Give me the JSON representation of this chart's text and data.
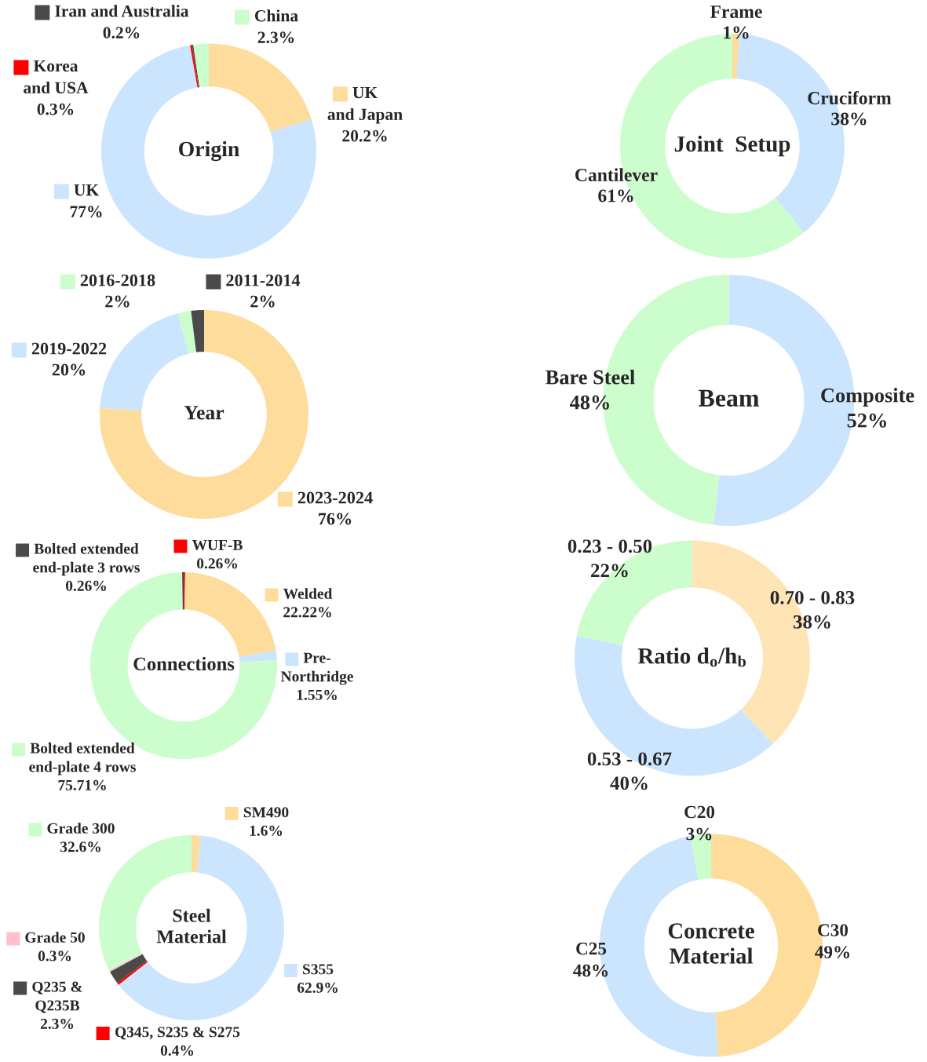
{
  "chart_data": [
    {
      "type": "donut",
      "title": "Origin",
      "categories": [
        "UK\nand Japan",
        "UK",
        "Korea\nand USA",
        "Iran and Australia",
        "China"
      ],
      "values": [
        20.2,
        77,
        0.3,
        0.2,
        2.3
      ],
      "value_labels": [
        "20.2%",
        "77%",
        "0.3%",
        "0.2%",
        "2.3%"
      ],
      "colors": [
        "#fedc9c",
        "#cce5fe",
        "#ff0000",
        "#4a4a4a",
        "#ccfdcc"
      ],
      "legend": "left"
    },
    {
      "type": "donut",
      "title": "Joint  Setup",
      "categories": [
        "Frame",
        "Cruciform",
        "Cantilever"
      ],
      "values": [
        1,
        38,
        61
      ],
      "value_labels": [
        "1%",
        "38%",
        "61%"
      ],
      "colors": [
        "#fedc9c",
        "#cce5fe",
        "#ccfdcc"
      ]
    },
    {
      "type": "donut",
      "title": "Year",
      "categories": [
        "2023-2024",
        "2019-2022",
        "2016-2018",
        "2011-2014"
      ],
      "values": [
        76,
        20,
        2,
        2
      ],
      "value_labels": [
        "76%",
        "20%",
        "2%",
        "2%"
      ],
      "colors": [
        "#fedc9c",
        "#cce5fe",
        "#ccfdcc",
        "#4a4a4a"
      ],
      "legend": "left"
    },
    {
      "type": "donut",
      "title": "Beam",
      "categories": [
        "Composite",
        "Bare Steel"
      ],
      "values": [
        52,
        48
      ],
      "value_labels": [
        "52%",
        "48%"
      ],
      "colors": [
        "#cce5fe",
        "#ccfdcc"
      ]
    },
    {
      "type": "donut",
      "title": "Connections",
      "categories": [
        "WUF-B",
        "Welded",
        "Pre-\nNorthridge",
        "Bolted extended\nend-plate 4 rows",
        "Bolted extended\nend-plate 3 rows"
      ],
      "values": [
        0.26,
        22.22,
        1.55,
        75.71,
        0.26
      ],
      "value_labels": [
        "0.26%",
        "22.22%",
        "1.55%",
        "75.71%",
        "0.26%"
      ],
      "colors": [
        "#ff0000",
        "#fedc9c",
        "#cce5fe",
        "#ccfdcc",
        "#4a4a4a"
      ],
      "legend": "left"
    },
    {
      "type": "donut",
      "title": "Ratio d$_{o}$/h$_{b}$",
      "categories": [
        "0.70 - 0.83",
        "0.53 - 0.67",
        "0.23 - 0.50"
      ],
      "values": [
        38,
        40,
        22
      ],
      "value_labels": [
        "38%",
        "40%",
        "22%"
      ],
      "colors": [
        "#ffe5b5",
        "#cce5fe",
        "#ccfdcc"
      ]
    },
    {
      "type": "donut",
      "title": "Steel\nMaterial",
      "categories": [
        "SM490",
        "S355",
        "Q345, S235 & S275",
        "Q235 &\nQ235B",
        "Grade 50",
        "Grade 300"
      ],
      "values": [
        1.6,
        62.9,
        0.4,
        2.3,
        0.3,
        32.6
      ],
      "value_labels": [
        "1.6%",
        "62.9%",
        "0.4%",
        "2.3%",
        "0.3%",
        "32.6%"
      ],
      "colors": [
        "#fedc9c",
        "#cce5fe",
        "#ff0000",
        "#4a4a4a",
        "#ffc0cb",
        "#ccfdcc"
      ],
      "legend": "left"
    },
    {
      "type": "donut",
      "title": "Concrete\nMaterial",
      "categories": [
        "C30",
        "C25",
        "C20"
      ],
      "values": [
        49,
        48,
        3
      ],
      "value_labels": [
        "49%",
        "48%",
        "3%"
      ],
      "colors": [
        "#fedc9c",
        "#cce5fe",
        "#ccfdcc"
      ]
    }
  ]
}
